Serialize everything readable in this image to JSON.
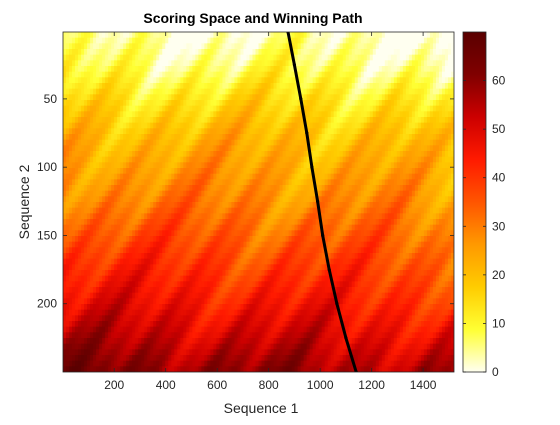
{
  "chart_data": {
    "type": "heatmap",
    "title": "Scoring Space and Winning Path",
    "xlabel": "Sequence 1",
    "ylabel": "Sequence 2",
    "xlim": [
      1,
      1520
    ],
    "ylim": [
      1,
      250
    ],
    "y_direction": "reverse",
    "x_ticks": [
      200,
      400,
      600,
      800,
      1000,
      1200,
      1400
    ],
    "x_tick_labels": [
      "200",
      "400",
      "600",
      "800",
      "1000",
      "1200",
      "1400"
    ],
    "y_ticks": [
      50,
      100,
      150,
      200
    ],
    "y_tick_labels": [
      "50",
      "100",
      "150",
      "200"
    ],
    "colormap": "hot (reversed)",
    "colormap_stops": [
      "#fffff0",
      "#ffff33",
      "#ffcc00",
      "#ff9900",
      "#ff5500",
      "#ff1a00",
      "#cc0000",
      "#800000",
      "#5a0000"
    ],
    "color_range": [
      0,
      70
    ],
    "colorbar_ticks": [
      0,
      10,
      20,
      30,
      40,
      50,
      60
    ],
    "colorbar_tick_labels": [
      "0",
      "10",
      "20",
      "30",
      "40",
      "50",
      "60"
    ],
    "colorbar_position": "right",
    "path_color": "#000000",
    "winning_path": [
      {
        "x": 875,
        "y": 1
      },
      {
        "x": 900,
        "y": 25
      },
      {
        "x": 925,
        "y": 50
      },
      {
        "x": 948,
        "y": 75
      },
      {
        "x": 968,
        "y": 100
      },
      {
        "x": 990,
        "y": 125
      },
      {
        "x": 1010,
        "y": 150
      },
      {
        "x": 1035,
        "y": 175
      },
      {
        "x": 1065,
        "y": 200
      },
      {
        "x": 1100,
        "y": 225
      },
      {
        "x": 1140,
        "y": 250
      }
    ],
    "score_field": {
      "description": "score increases with Sequence 2 position, higher toward lower-left, diagonal streaks",
      "row_base": [
        {
          "y": 1,
          "value": 2
        },
        {
          "y": 25,
          "value": 6
        },
        {
          "y": 50,
          "value": 13
        },
        {
          "y": 75,
          "value": 19
        },
        {
          "y": 100,
          "value": 23
        },
        {
          "y": 125,
          "value": 27
        },
        {
          "y": 150,
          "value": 32
        },
        {
          "y": 175,
          "value": 37
        },
        {
          "y": 200,
          "value": 42
        },
        {
          "y": 225,
          "value": 48
        },
        {
          "y": 250,
          "value": 55
        }
      ]
    }
  }
}
